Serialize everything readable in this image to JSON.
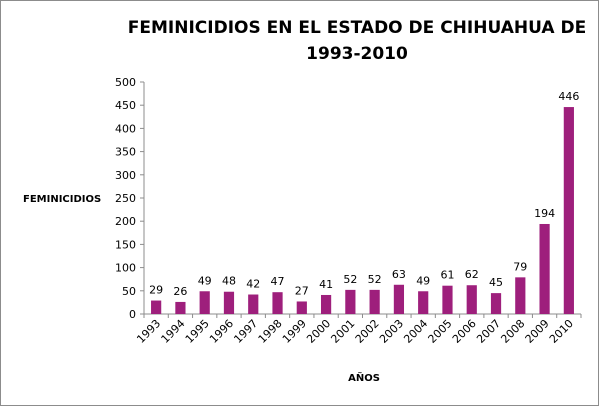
{
  "chart_data": {
    "type": "bar",
    "title_lines": [
      "FEMINICIDIOS EN EL ESTADO DE CHIHUAHUA DE",
      "1993-2010"
    ],
    "xlabel": "AÑOS",
    "ylabel": "FEMINICIDIOS",
    "categories": [
      "1993",
      "1994",
      "1995",
      "1996",
      "1997",
      "1998",
      "1999",
      "2000",
      "2001",
      "2002",
      "2003",
      "2004",
      "2005",
      "2006",
      "2007",
      "2008",
      "2009",
      "2010"
    ],
    "values": [
      29,
      26,
      49,
      48,
      42,
      47,
      27,
      41,
      52,
      52,
      63,
      49,
      61,
      62,
      45,
      79,
      194,
      446
    ],
    "ylim": [
      0,
      500
    ],
    "yticks": [
      0,
      50,
      100,
      150,
      200,
      250,
      300,
      350,
      400,
      450,
      500
    ],
    "bar_color": "#9e1f7c",
    "grid": false,
    "legend": "none"
  }
}
